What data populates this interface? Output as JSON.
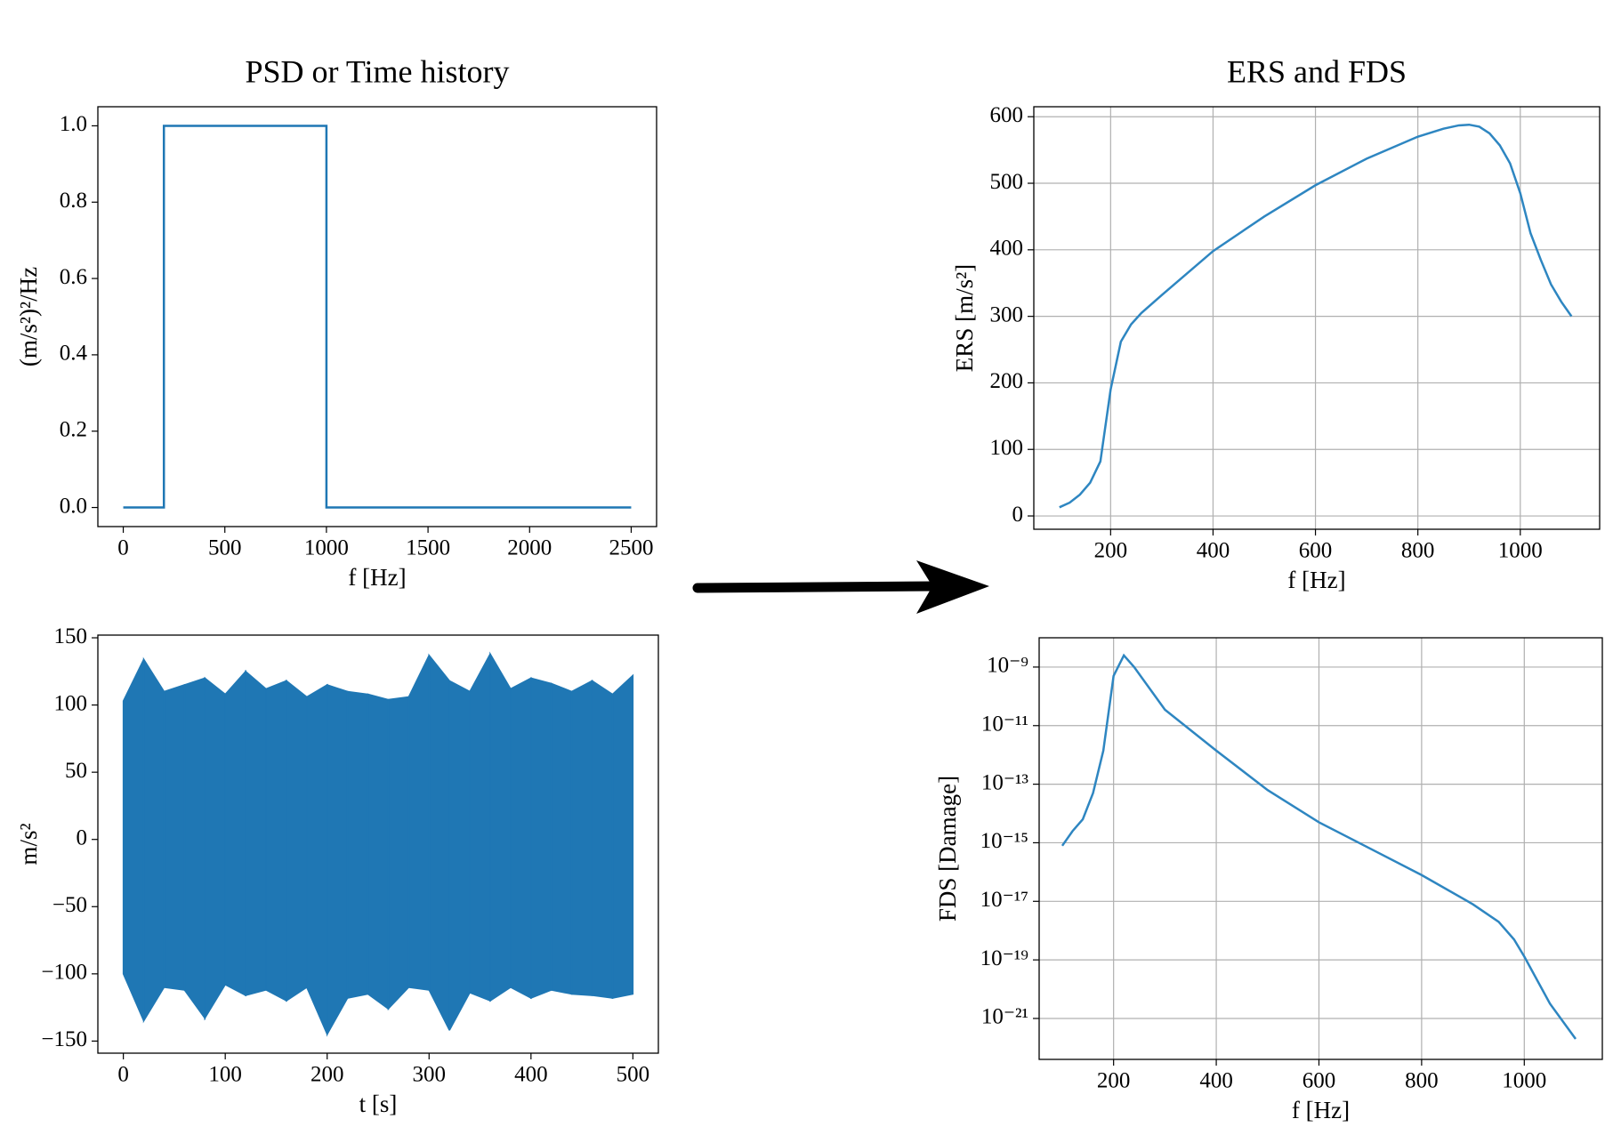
{
  "chart_data": [
    {
      "type": "line",
      "title": "PSD or Time history",
      "xlabel": "f [Hz]",
      "ylabel": "(m/s²)²/Hz",
      "x": [
        0,
        200,
        200,
        1000,
        1000,
        2500
      ],
      "values": [
        0,
        0,
        1,
        1,
        0,
        0
      ],
      "color": "#1f77b4",
      "xlim": [
        -125,
        2625
      ],
      "ylim": [
        -0.05,
        1.05
      ],
      "xticks": [
        0,
        500,
        1000,
        1500,
        2000,
        2500
      ],
      "yticks": [
        {
          "value": 0,
          "label": "0.0"
        },
        0.2,
        0.4,
        0.6,
        0.8,
        {
          "value": 1,
          "label": "1.0"
        }
      ],
      "grid": false
    },
    {
      "type": "band",
      "xlabel": "t [s]",
      "ylabel": "m/s²",
      "color": "#1f77b4",
      "x": [
        0,
        20,
        40,
        60,
        80,
        100,
        120,
        140,
        160,
        180,
        200,
        220,
        240,
        260,
        280,
        300,
        320,
        340,
        360,
        380,
        400,
        420,
        440,
        460,
        480,
        500
      ],
      "upper": [
        103,
        134,
        110,
        115,
        120,
        108,
        125,
        112,
        118,
        106,
        115,
        110,
        108,
        104,
        106,
        137,
        118,
        110,
        138,
        112,
        120,
        116,
        110,
        118,
        108,
        122
      ],
      "lower": [
        -100,
        -135,
        -110,
        -112,
        -133,
        -108,
        -116,
        -112,
        -120,
        -110,
        -145,
        -118,
        -115,
        -126,
        -110,
        -112,
        -142,
        -114,
        -120,
        -110,
        -118,
        -112,
        -115,
        -116,
        -118,
        -115
      ],
      "xlim": [
        -25,
        525
      ],
      "ylim": [
        -159,
        152
      ],
      "xticks": [
        0,
        100,
        200,
        300,
        400,
        500
      ],
      "yticks": [
        {
          "value": -150,
          "label": "−150"
        },
        {
          "value": -100,
          "label": "−100"
        },
        {
          "value": -50,
          "label": "−50"
        },
        0,
        50,
        100,
        150
      ],
      "grid": false
    },
    {
      "type": "line",
      "title": "ERS and FDS",
      "xlabel": "f [Hz]",
      "ylabel": "ERS [m/s²]",
      "color": "#2e86c1",
      "x": [
        100,
        120,
        140,
        160,
        180,
        200,
        220,
        240,
        260,
        300,
        400,
        500,
        600,
        700,
        800,
        850,
        880,
        900,
        920,
        940,
        960,
        980,
        1000,
        1020,
        1040,
        1060,
        1080,
        1100
      ],
      "values": [
        13,
        20,
        32,
        50,
        82,
        190,
        262,
        288,
        305,
        332,
        398,
        450,
        497,
        537,
        570,
        582,
        587,
        588,
        585,
        575,
        557,
        530,
        485,
        425,
        385,
        348,
        322,
        300
      ],
      "xlim": [
        50,
        1155
      ],
      "ylim": [
        -20,
        615
      ],
      "xticks": [
        200,
        400,
        600,
        800,
        1000
      ],
      "yticks": [
        0,
        100,
        200,
        300,
        400,
        500,
        600
      ],
      "grid": true
    },
    {
      "type": "line",
      "xlabel": "f [Hz]",
      "ylabel": "FDS [Damage]",
      "color": "#2e86c1",
      "yscale": "log",
      "x": [
        100,
        120,
        140,
        160,
        180,
        200,
        220,
        240,
        300,
        400,
        500,
        600,
        700,
        800,
        900,
        950,
        980,
        1000,
        1050,
        1100
      ],
      "values": [
        7.9e-16,
        2.5e-15,
        6.3e-15,
        5e-14,
        1.4e-12,
        5e-10,
        2.5e-09,
        1e-09,
        3.5e-11,
        1.4e-12,
        6.3e-14,
        5e-15,
        6.3e-16,
        7.9e-17,
        7.9e-18,
        2e-18,
        5e-19,
        1.3e-19,
        3.2e-21,
        2e-22
      ],
      "xlim": [
        55,
        1152
      ],
      "ylim": [
        4e-23,
        1e-08
      ],
      "xticks": [
        200,
        400,
        600,
        800,
        1000
      ],
      "yticks": [
        {
          "value": 1e-21,
          "label": "10⁻²¹"
        },
        {
          "value": 1e-19,
          "label": "10⁻¹⁹"
        },
        {
          "value": 1e-17,
          "label": "10⁻¹⁷"
        },
        {
          "value": 1e-15,
          "label": "10⁻¹⁵"
        },
        {
          "value": 1e-13,
          "label": "10⁻¹³"
        },
        {
          "value": 1e-11,
          "label": "10⁻¹¹"
        },
        {
          "value": 1e-09,
          "label": "10⁻⁹"
        }
      ],
      "grid": true
    }
  ]
}
